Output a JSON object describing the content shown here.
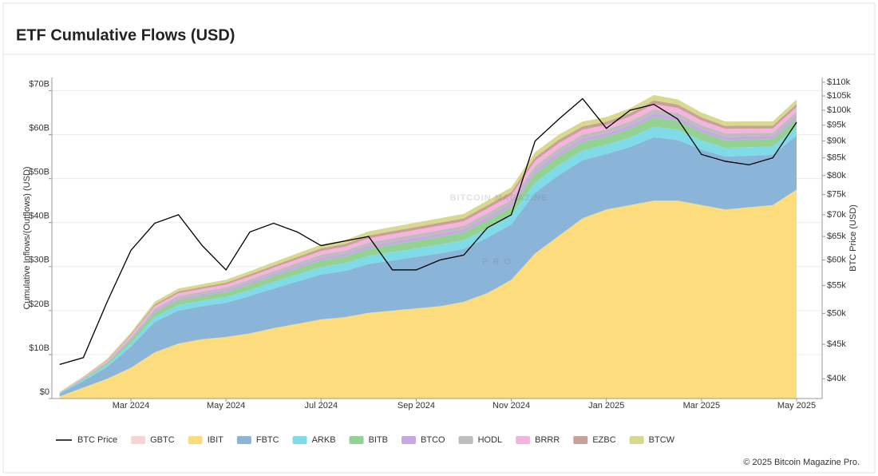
{
  "chart_data": {
    "type": "area",
    "stacked": true,
    "title": "ETF Cumulative Flows (USD)",
    "ylabel": "Cumulative Inflows/(Outflows) (USD)",
    "y2label": "BTC Price (USD)",
    "y2scale": "log",
    "grid": true,
    "legend": "bottom",
    "watermark": [
      "BITCOIN MAGAZINE",
      "PRO"
    ],
    "ylim": [
      0,
      73
    ],
    "yticks": [
      {
        "value": 0,
        "label": "$0"
      },
      {
        "value": 10,
        "label": "$10B"
      },
      {
        "value": 20,
        "label": "$20B"
      },
      {
        "value": 30,
        "label": "$30B"
      },
      {
        "value": 40,
        "label": "$40B"
      },
      {
        "value": 50,
        "label": "$50B"
      },
      {
        "value": 60,
        "label": "$60B"
      },
      {
        "value": 70,
        "label": "$70B"
      }
    ],
    "y2lim": [
      37.4,
      111.8
    ],
    "y2ticks": [
      {
        "value": 40,
        "label": "$40k"
      },
      {
        "value": 45,
        "label": "$45k"
      },
      {
        "value": 50,
        "label": "$50k"
      },
      {
        "value": 55,
        "label": "$55k"
      },
      {
        "value": 60,
        "label": "$60k"
      },
      {
        "value": 65,
        "label": "$65k"
      },
      {
        "value": 70,
        "label": "$70k"
      },
      {
        "value": 75,
        "label": "$75k"
      },
      {
        "value": 80,
        "label": "$80k"
      },
      {
        "value": 85,
        "label": "$85k"
      },
      {
        "value": 90,
        "label": "$90k"
      },
      {
        "value": 95,
        "label": "$95k"
      },
      {
        "value": 100,
        "label": "$100k"
      },
      {
        "value": 105,
        "label": "$105k"
      },
      {
        "value": 110,
        "label": "$110k"
      }
    ],
    "categories": [
      null,
      null,
      null,
      "Mar 2024",
      null,
      null,
      null,
      "May 2024",
      null,
      null,
      null,
      "Jul 2024",
      null,
      null,
      null,
      "Sep 2024",
      null,
      null,
      null,
      "Nov 2024",
      null,
      null,
      null,
      "Jan 2025",
      null,
      null,
      null,
      "Mar 2025",
      null,
      null,
      null,
      "May 2025"
    ],
    "series": [
      {
        "name": "BTC Price",
        "type": "line",
        "axis": "y2",
        "color": "#000000",
        "values": [
          42,
          43,
          52,
          62,
          68,
          70,
          63,
          58,
          66,
          68,
          66,
          63,
          64,
          65,
          58,
          58,
          60,
          61,
          67,
          70,
          90,
          97,
          104,
          94,
          100,
          102,
          97,
          86,
          84,
          83,
          85,
          96
        ]
      },
      {
        "name": "GBTC",
        "color": "#f4c2c2",
        "visible": false
      },
      {
        "name": "IBIT",
        "color": "#fcdc7c",
        "values": [
          0.5,
          2.5,
          4.5,
          7,
          10.5,
          12.5,
          13.5,
          14,
          14.8,
          16,
          17,
          18,
          18.5,
          19.5,
          20,
          20.5,
          21,
          22,
          24,
          27,
          33,
          37,
          41,
          43,
          44,
          45,
          45,
          44,
          43,
          43.5,
          44,
          47.5
        ]
      },
      {
        "name": "FBTC",
        "color": "#8ab4d8",
        "values": [
          0.6,
          1.5,
          2.7,
          4.8,
          6.9,
          7.5,
          7.5,
          7.8,
          8.5,
          9,
          9.6,
          10.2,
          10.5,
          11.1,
          11.4,
          11.7,
          12,
          12,
          12.6,
          12.6,
          13.8,
          13.8,
          13.2,
          12.6,
          13.2,
          14.4,
          13.8,
          12.6,
          12,
          11.7,
          11.4,
          12.3
        ]
      },
      {
        "name": "ARKB",
        "color": "#7fdbe8",
        "values": [
          0.1,
          0.25,
          0.45,
          0.8,
          1.15,
          1.25,
          1.25,
          1.3,
          1.4,
          1.5,
          1.6,
          1.7,
          1.75,
          1.85,
          1.9,
          1.95,
          2,
          2,
          2.1,
          2.1,
          2.3,
          2.3,
          2.2,
          2.1,
          2.2,
          2.4,
          2.3,
          2.1,
          2,
          1.95,
          1.9,
          2.05
        ]
      },
      {
        "name": "BITB",
        "color": "#93d293",
        "values": [
          0.09,
          0.23,
          0.4,
          0.72,
          1.04,
          1.13,
          1.13,
          1.17,
          1.28,
          1.35,
          1.44,
          1.53,
          1.58,
          1.67,
          1.71,
          1.76,
          1.8,
          1.8,
          1.89,
          1.89,
          2.07,
          2.07,
          1.98,
          1.89,
          1.98,
          2.16,
          2.07,
          1.89,
          1.8,
          1.76,
          1.71,
          1.85
        ]
      },
      {
        "name": "BTCO",
        "color": "#c8a8e2",
        "values": [
          0.04,
          0.09,
          0.16,
          0.28,
          0.4,
          0.44,
          0.44,
          0.46,
          0.5,
          0.53,
          0.56,
          0.6,
          0.61,
          0.65,
          0.67,
          0.68,
          0.7,
          0.7,
          0.74,
          0.74,
          0.81,
          0.81,
          0.77,
          0.74,
          0.77,
          0.84,
          0.81,
          0.74,
          0.7,
          0.68,
          0.67,
          0.72
        ]
      },
      {
        "name": "HODL",
        "color": "#bdbdbd",
        "values": [
          0.04,
          0.1,
          0.18,
          0.32,
          0.46,
          0.5,
          0.5,
          0.52,
          0.57,
          0.6,
          0.64,
          0.68,
          0.7,
          0.74,
          0.76,
          0.78,
          0.8,
          0.8,
          0.84,
          0.84,
          0.92,
          0.92,
          0.88,
          0.84,
          0.88,
          0.96,
          0.92,
          0.84,
          0.8,
          0.78,
          0.76,
          0.82
        ]
      },
      {
        "name": "BRRR",
        "color": "#f5b3de",
        "values": [
          0.05,
          0.13,
          0.23,
          0.4,
          0.58,
          0.63,
          0.63,
          0.65,
          0.71,
          0.75,
          0.8,
          0.85,
          0.88,
          0.93,
          0.95,
          0.98,
          1,
          1,
          1.05,
          1.05,
          1.15,
          1.15,
          1.1,
          1.05,
          1.1,
          1.2,
          1.15,
          1.05,
          1,
          0.98,
          0.95,
          1.03
        ]
      },
      {
        "name": "EZBC",
        "color": "#c9a19b",
        "values": [
          0.04,
          0.09,
          0.16,
          0.28,
          0.4,
          0.44,
          0.44,
          0.46,
          0.5,
          0.53,
          0.56,
          0.6,
          0.61,
          0.65,
          0.67,
          0.68,
          0.7,
          0.7,
          0.74,
          0.74,
          0.81,
          0.81,
          0.77,
          0.74,
          0.77,
          0.84,
          0.81,
          0.74,
          0.7,
          0.68,
          0.67,
          0.72
        ]
      },
      {
        "name": "BTCW",
        "color": "#d7da8c",
        "values": [
          0.05,
          0.13,
          0.23,
          0.4,
          0.58,
          0.63,
          0.63,
          0.65,
          0.71,
          0.75,
          0.8,
          0.85,
          0.88,
          0.93,
          0.95,
          0.98,
          1,
          1,
          1.05,
          1.05,
          1.15,
          1.15,
          1.1,
          1.05,
          1.1,
          1.2,
          1.15,
          1.05,
          1,
          0.98,
          0.95,
          1.03
        ]
      }
    ]
  },
  "footer": "© 2025 Bitcoin Magazine Pro."
}
